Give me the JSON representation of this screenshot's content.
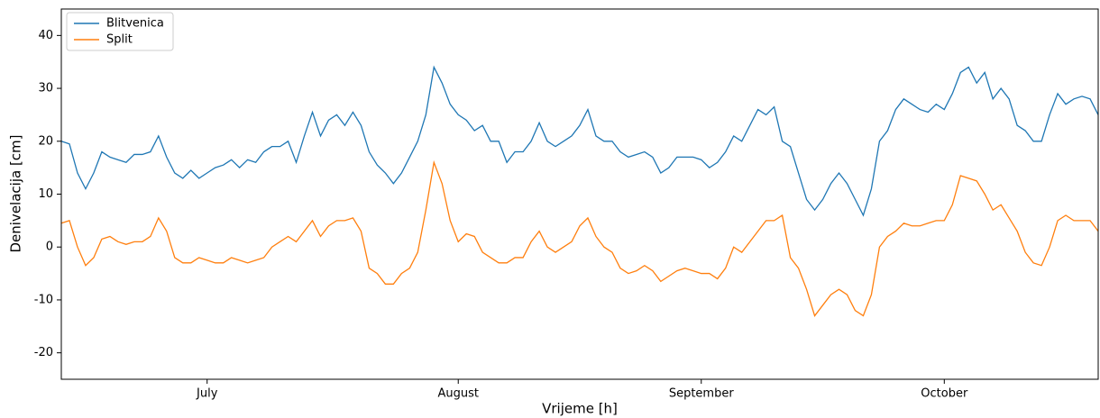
{
  "chart_data": {
    "type": "line",
    "xlabel": "Vrijeme [h]",
    "ylabel": "Denivelacija [cm]",
    "categories": [
      null,
      null,
      null,
      null,
      null,
      null,
      null,
      null,
      null,
      null,
      null,
      null,
      null,
      null,
      null,
      null,
      null,
      null,
      "July",
      null,
      null,
      null,
      null,
      null,
      null,
      null,
      null,
      null,
      null,
      null,
      null,
      null,
      null,
      null,
      null,
      null,
      null,
      null,
      null,
      null,
      null,
      null,
      null,
      null,
      null,
      null,
      null,
      null,
      null,
      "August",
      null,
      null,
      null,
      null,
      null,
      null,
      null,
      null,
      null,
      null,
      null,
      null,
      null,
      null,
      null,
      null,
      null,
      null,
      null,
      null,
      null,
      null,
      null,
      null,
      null,
      null,
      null,
      null,
      null,
      "September",
      null,
      null,
      null,
      null,
      null,
      null,
      null,
      null,
      null,
      null,
      null,
      null,
      null,
      null,
      null,
      null,
      null,
      null,
      null,
      null,
      null,
      null,
      null,
      null,
      null,
      null,
      null,
      null,
      null,
      "October",
      null,
      null,
      null,
      null,
      null,
      null,
      null,
      null,
      null,
      null,
      null,
      null,
      null,
      null,
      null,
      null,
      null,
      null,
      null
    ],
    "series": [
      {
        "name": "Blitvenica",
        "color": "#1f77b4",
        "values": [
          20,
          19.5,
          14,
          11,
          14,
          18,
          17,
          16.5,
          16,
          17.5,
          17.5,
          18,
          21,
          17,
          14,
          13,
          14.5,
          13,
          14,
          15,
          15.5,
          16.5,
          15,
          16.5,
          16,
          18,
          19,
          19,
          20,
          16,
          21,
          25.5,
          21,
          24,
          25,
          23,
          25.5,
          23,
          18,
          15.5,
          14,
          12,
          14,
          17,
          20,
          25,
          34,
          31,
          27,
          25,
          24,
          22,
          23,
          20,
          20,
          16,
          18,
          18,
          20,
          23.5,
          20,
          19,
          20,
          21,
          23,
          26,
          21,
          20,
          20,
          18,
          17,
          17.5,
          18,
          17,
          14,
          15,
          17,
          17,
          17,
          16.5,
          15,
          16,
          18,
          21,
          20,
          23,
          26,
          25,
          26.5,
          20,
          19,
          14,
          9,
          7,
          9,
          12,
          14,
          12,
          9,
          6,
          11,
          20,
          22,
          26,
          28,
          27,
          26,
          25.5,
          27,
          26,
          29,
          33,
          34,
          31,
          33,
          28,
          30,
          28,
          23,
          22,
          20,
          20,
          25,
          29,
          27,
          28,
          28.5,
          28,
          25
        ]
      },
      {
        "name": "Split",
        "color": "#ff7f0e",
        "values": [
          4.5,
          5,
          0,
          -3.5,
          -2,
          1.5,
          2,
          1,
          0.5,
          1,
          1,
          2,
          5.5,
          3,
          -2,
          -3,
          -3,
          -2,
          -2.5,
          -3,
          -3,
          -2,
          -2.5,
          -3,
          -2.5,
          -2,
          0,
          1,
          2,
          1,
          3,
          5,
          2,
          4,
          5,
          5,
          5.5,
          3,
          -4,
          -5,
          -7,
          -7,
          -5,
          -4,
          -1,
          7,
          16,
          12,
          5,
          1,
          2.5,
          2,
          -1,
          -2,
          -3,
          -3,
          -2,
          -2,
          1,
          3,
          0,
          -1,
          0,
          1,
          4,
          5.5,
          2,
          0,
          -1,
          -4,
          -5,
          -4.5,
          -3.5,
          -4.5,
          -6.5,
          -5.5,
          -4.5,
          -4,
          -4.5,
          -5,
          -5,
          -6,
          -4,
          0,
          -1,
          1,
          3,
          5,
          5,
          6,
          -2,
          -4,
          -8,
          -13,
          -11,
          -9,
          -8,
          -9,
          -12,
          -13,
          -9,
          0,
          2,
          3,
          4.5,
          4,
          4,
          4.5,
          5,
          5,
          8,
          13.5,
          13,
          12.5,
          10,
          7,
          8,
          5.5,
          3,
          -1,
          -3,
          -3.5,
          0,
          5,
          6,
          5,
          5,
          5,
          3
        ]
      }
    ],
    "ylim": [
      -25,
      45
    ],
    "yticks": [
      -20,
      -10,
      0,
      10,
      20,
      30,
      40
    ],
    "legend": "upper left"
  }
}
